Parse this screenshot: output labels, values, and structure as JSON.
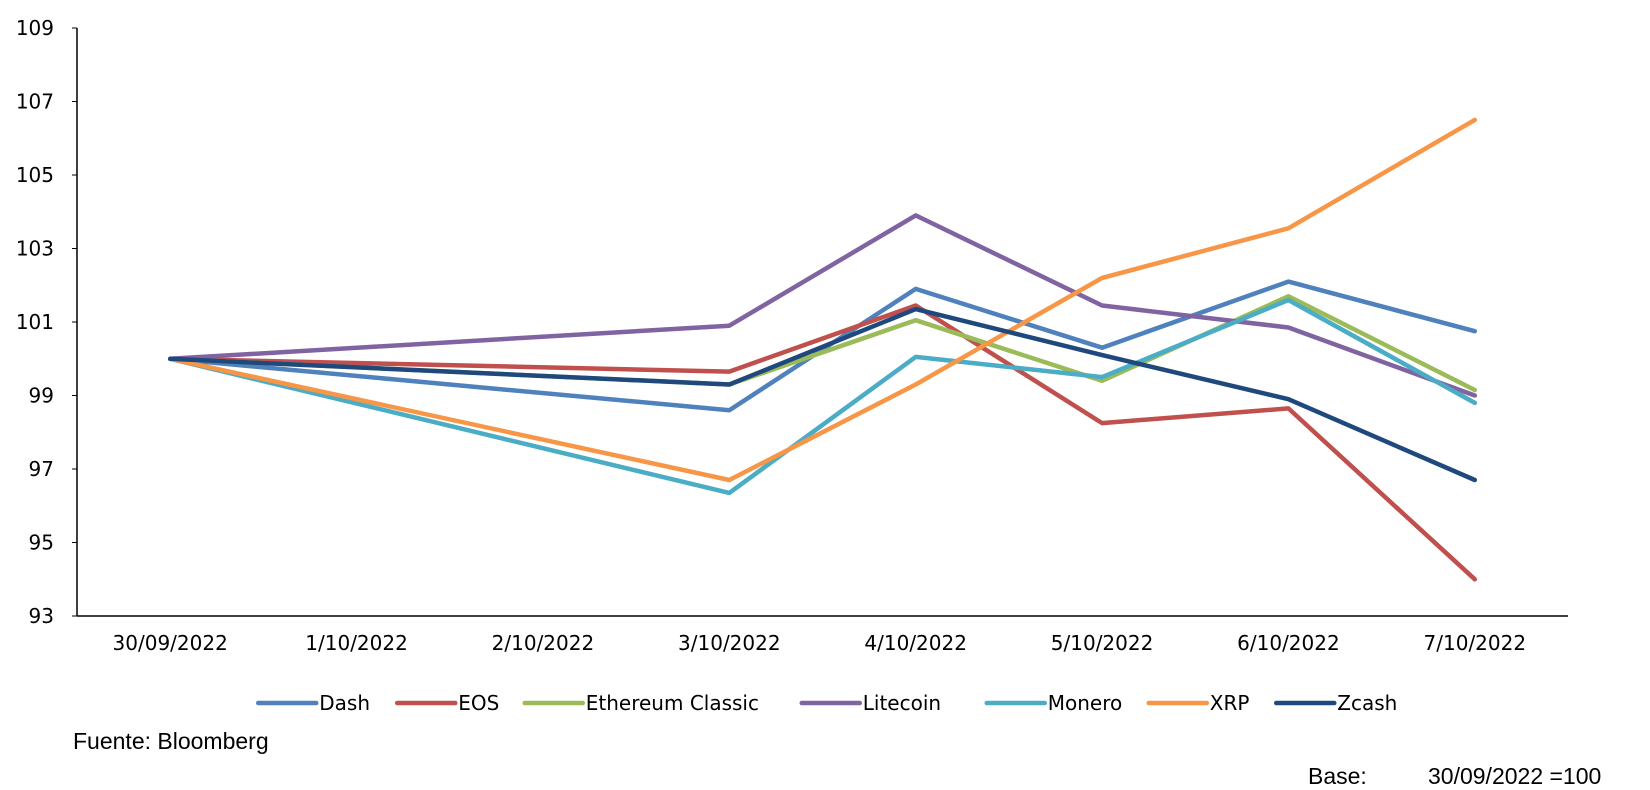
{
  "chart_data": {
    "type": "line",
    "categories": [
      "30/09/2022",
      "1/10/2022",
      "2/10/2022",
      "3/10/2022",
      "4/10/2022",
      "5/10/2022",
      "6/10/2022",
      "7/10/2022"
    ],
    "ylim": [
      93,
      109
    ],
    "yticks": [
      "93",
      "95",
      "97",
      "99",
      "101",
      "103",
      "105",
      "107",
      "109"
    ],
    "grid": false,
    "legend_position": "bottom",
    "series": [
      {
        "name": "Dash",
        "color": "#4F81BD",
        "values": [
          100,
          null,
          null,
          98.6,
          101.9,
          100.3,
          102.1,
          100.75
        ]
      },
      {
        "name": "EOS",
        "color": "#C0504D",
        "values": [
          100,
          null,
          null,
          99.65,
          101.45,
          98.25,
          98.65,
          94.0
        ]
      },
      {
        "name": "Ethereum Classic",
        "color": "#9BBB59",
        "values": [
          100,
          null,
          null,
          99.3,
          101.05,
          99.4,
          101.7,
          99.15
        ]
      },
      {
        "name": "Litecoin",
        "color": "#8064A2",
        "values": [
          100,
          null,
          null,
          100.9,
          103.9,
          101.45,
          100.85,
          99.0
        ]
      },
      {
        "name": "Monero",
        "color": "#4BACC6",
        "values": [
          100,
          null,
          null,
          96.35,
          100.05,
          99.5,
          101.6,
          98.8
        ]
      },
      {
        "name": "XRP",
        "color": "#F79646",
        "values": [
          100,
          null,
          null,
          96.7,
          99.3,
          102.2,
          103.55,
          106.5
        ]
      },
      {
        "name": "Zcash",
        "color": "#1F497D",
        "values": [
          100,
          null,
          null,
          99.3,
          101.35,
          100.1,
          98.9,
          96.7
        ]
      }
    ]
  },
  "footer": {
    "source": "Fuente: Bloomberg",
    "base_label": "Base:",
    "base_value": "30/09/2022 =100"
  }
}
